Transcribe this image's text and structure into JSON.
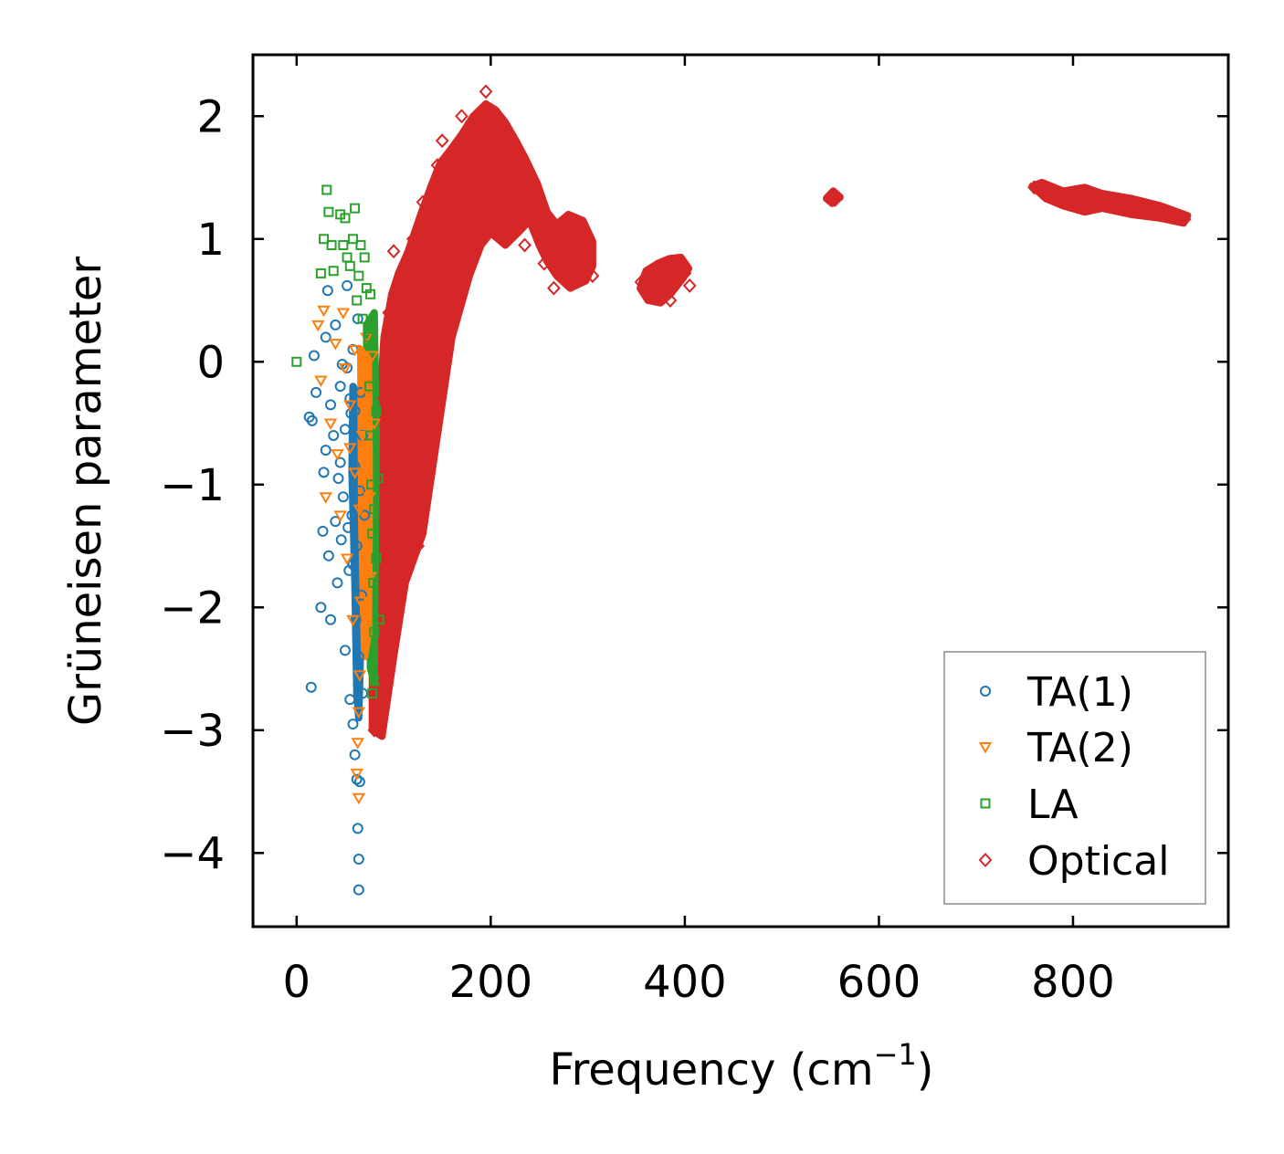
{
  "chart_data": {
    "type": "scatter",
    "title": "",
    "xlabel": "Frequency (cm",
    "xlabel_sup": "−1",
    "xlabel_close": ")",
    "ylabel": "Grüneisen parameter",
    "xlim": [
      -45,
      960
    ],
    "ylim": [
      -4.6,
      2.5
    ],
    "xticks": [
      0,
      200,
      400,
      600,
      800
    ],
    "xtick_labels": [
      "0",
      "200",
      "400",
      "600",
      "800"
    ],
    "yticks": [
      -4,
      -3,
      -2,
      -1,
      0,
      1,
      2
    ],
    "ytick_labels": [
      "−4",
      "−3",
      "−2",
      "−1",
      "0",
      "1",
      "2"
    ],
    "grid": false,
    "legend_position": "bottom-right",
    "series": [
      {
        "name": "TA(1)",
        "marker": "circle",
        "color": "#1f77b4",
        "points": [
          [
            15,
            -2.65
          ],
          [
            13,
            -0.45
          ],
          [
            16,
            -0.48
          ],
          [
            18,
            0.05
          ],
          [
            20,
            -0.25
          ],
          [
            25,
            -2.0
          ],
          [
            27,
            -1.38
          ],
          [
            28,
            -0.9
          ],
          [
            30,
            -0.72
          ],
          [
            30,
            0.2
          ],
          [
            32,
            0.58
          ],
          [
            33,
            -1.58
          ],
          [
            35,
            -2.1
          ],
          [
            35,
            -0.35
          ],
          [
            38,
            -0.6
          ],
          [
            40,
            -1.3
          ],
          [
            40,
            0.3
          ],
          [
            42,
            -1.8
          ],
          [
            43,
            -0.95
          ],
          [
            45,
            -0.2
          ],
          [
            46,
            -1.45
          ],
          [
            48,
            -1.1
          ],
          [
            50,
            -2.35
          ],
          [
            52,
            -0.05
          ],
          [
            52,
            0.62
          ],
          [
            54,
            -1.7
          ],
          [
            55,
            -2.75
          ],
          [
            56,
            -0.42
          ],
          [
            57,
            -1.25
          ],
          [
            58,
            -2.95
          ],
          [
            58,
            0.1
          ],
          [
            60,
            -3.2
          ],
          [
            60,
            -0.85
          ],
          [
            61,
            -2.1
          ],
          [
            62,
            -3.4
          ],
          [
            62,
            -1.5
          ],
          [
            63,
            -3.8
          ],
          [
            63,
            0.35
          ],
          [
            64,
            -4.05
          ],
          [
            64,
            -4.3
          ],
          [
            64,
            -2.4
          ],
          [
            65,
            -3.42
          ],
          [
            65,
            -1.05
          ],
          [
            66,
            -0.25
          ],
          [
            67,
            -1.9
          ],
          [
            68,
            -2.7
          ],
          [
            68,
            -0.6
          ],
          [
            70,
            -1.25
          ],
          [
            55,
            -0.3
          ],
          [
            50,
            -0.55
          ],
          [
            45,
            -0.82
          ],
          [
            47,
            -0.02
          ],
          [
            60,
            -0.4
          ],
          [
            58,
            -1.65
          ],
          [
            53,
            -1.35
          ]
        ]
      },
      {
        "name": "TA(2)",
        "marker": "triangle-down",
        "color": "#ff7f0e",
        "points": [
          [
            22,
            0.3
          ],
          [
            25,
            -0.15
          ],
          [
            28,
            0.42
          ],
          [
            30,
            -1.1
          ],
          [
            35,
            -0.5
          ],
          [
            40,
            0.15
          ],
          [
            42,
            -0.75
          ],
          [
            45,
            -1.25
          ],
          [
            48,
            0.4
          ],
          [
            50,
            -0.05
          ],
          [
            52,
            -1.6
          ],
          [
            55,
            -0.35
          ],
          [
            58,
            -2.1
          ],
          [
            60,
            -0.9
          ],
          [
            62,
            -3.35
          ],
          [
            64,
            -3.55
          ],
          [
            63,
            -3.1
          ],
          [
            64,
            -2.85
          ],
          [
            65,
            -2.55
          ],
          [
            66,
            -1.95
          ],
          [
            68,
            -0.6
          ],
          [
            70,
            -1.4
          ],
          [
            72,
            -2.25
          ],
          [
            72,
            0.2
          ],
          [
            74,
            -0.25
          ],
          [
            75,
            -1.1
          ],
          [
            76,
            -1.75
          ],
          [
            78,
            0.05
          ],
          [
            80,
            -0.5
          ],
          [
            65,
            -1.2
          ],
          [
            60,
            0.1
          ],
          [
            55,
            -0.7
          ]
        ]
      },
      {
        "name": "LA",
        "marker": "square",
        "color": "#2ca02c",
        "points": [
          [
            0,
            0.0
          ],
          [
            25,
            0.72
          ],
          [
            28,
            1.0
          ],
          [
            31,
            1.4
          ],
          [
            33,
            1.22
          ],
          [
            36,
            0.95
          ],
          [
            38,
            0.74
          ],
          [
            45,
            1.2
          ],
          [
            48,
            0.95
          ],
          [
            50,
            1.17
          ],
          [
            52,
            0.85
          ],
          [
            55,
            0.78
          ],
          [
            58,
            1.0
          ],
          [
            60,
            1.25
          ],
          [
            62,
            0.5
          ],
          [
            64,
            0.7
          ],
          [
            66,
            0.95
          ],
          [
            68,
            0.35
          ],
          [
            70,
            0.85
          ],
          [
            72,
            0.6
          ],
          [
            74,
            0.2
          ],
          [
            75,
            -0.2
          ],
          [
            76,
            -0.6
          ],
          [
            77,
            -1.0
          ],
          [
            78,
            -1.4
          ],
          [
            79,
            -1.8
          ],
          [
            80,
            -2.2
          ],
          [
            80,
            -2.6
          ],
          [
            78,
            -2.7
          ],
          [
            82,
            -1.6
          ],
          [
            84,
            -0.95
          ],
          [
            85,
            -2.1
          ],
          [
            82,
            -0.4
          ],
          [
            80,
            -1.2
          ],
          [
            76,
            0.55
          ]
        ]
      },
      {
        "name": "Optical",
        "marker": "diamond",
        "color": "#d62728",
        "points": [
          [
            80,
            -3.0
          ],
          [
            86,
            -2.9
          ],
          [
            90,
            -2.6
          ],
          [
            95,
            -2.2
          ],
          [
            100,
            -1.8
          ],
          [
            95,
            -1.4
          ],
          [
            100,
            -0.9
          ],
          [
            105,
            -1.2
          ],
          [
            90,
            -0.3
          ],
          [
            95,
            0.4
          ],
          [
            100,
            0.9
          ],
          [
            110,
            -0.1
          ],
          [
            110,
            0.7
          ],
          [
            120,
            -0.6
          ],
          [
            120,
            1.0
          ],
          [
            125,
            -1.5
          ],
          [
            130,
            -0.2
          ],
          [
            130,
            1.3
          ],
          [
            140,
            0.4
          ],
          [
            140,
            1.1
          ],
          [
            145,
            1.6
          ],
          [
            150,
            -0.1
          ],
          [
            150,
            1.8
          ],
          [
            160,
            0.6
          ],
          [
            160,
            1.5
          ],
          [
            170,
            2.0
          ],
          [
            175,
            0.8
          ],
          [
            180,
            1.95
          ],
          [
            190,
            1.2
          ],
          [
            195,
            2.2
          ],
          [
            200,
            1.1
          ],
          [
            205,
            1.9
          ],
          [
            210,
            1.5
          ],
          [
            215,
            1.05
          ],
          [
            220,
            1.85
          ],
          [
            230,
            1.65
          ],
          [
            235,
            0.95
          ],
          [
            240,
            1.4
          ],
          [
            250,
            1.2
          ],
          [
            255,
            0.8
          ],
          [
            265,
            0.6
          ],
          [
            275,
            0.68
          ],
          [
            280,
            1.05
          ],
          [
            290,
            0.85
          ],
          [
            300,
            0.95
          ],
          [
            305,
            0.7
          ],
          [
            355,
            0.65
          ],
          [
            365,
            0.55
          ],
          [
            375,
            0.6
          ],
          [
            380,
            0.7
          ],
          [
            385,
            0.5
          ],
          [
            390,
            0.78
          ],
          [
            400,
            0.72
          ],
          [
            405,
            0.62
          ],
          [
            550,
            1.35
          ],
          [
            555,
            1.32
          ],
          [
            760,
            1.42
          ],
          [
            780,
            1.36
          ],
          [
            800,
            1.3
          ],
          [
            820,
            1.34
          ],
          [
            840,
            1.28
          ],
          [
            860,
            1.25
          ],
          [
            880,
            1.22
          ],
          [
            900,
            1.2
          ],
          [
            915,
            1.16
          ]
        ]
      }
    ],
    "dense_regions": [
      {
        "series": "Optical",
        "outline": [
          [
            78,
            -3.0
          ],
          [
            88,
            -3.05
          ],
          [
            100,
            -2.4
          ],
          [
            112,
            -1.8
          ],
          [
            130,
            -1.4
          ],
          [
            145,
            -0.6
          ],
          [
            160,
            0.2
          ],
          [
            178,
            0.7
          ],
          [
            190,
            0.95
          ],
          [
            200,
            1.05
          ],
          [
            215,
            0.95
          ],
          [
            228,
            1.05
          ],
          [
            240,
            1.15
          ],
          [
            250,
            0.95
          ],
          [
            258,
            0.82
          ],
          [
            268,
            0.7
          ],
          [
            282,
            0.6
          ],
          [
            298,
            0.66
          ],
          [
            305,
            0.78
          ],
          [
            305,
            0.98
          ],
          [
            295,
            1.15
          ],
          [
            280,
            1.2
          ],
          [
            268,
            1.12
          ],
          [
            258,
            1.22
          ],
          [
            248,
            1.45
          ],
          [
            236,
            1.65
          ],
          [
            226,
            1.8
          ],
          [
            215,
            1.95
          ],
          [
            205,
            2.05
          ],
          [
            195,
            2.1
          ],
          [
            182,
            2.0
          ],
          [
            170,
            1.85
          ],
          [
            158,
            1.72
          ],
          [
            148,
            1.62
          ],
          [
            138,
            1.42
          ],
          [
            128,
            1.2
          ],
          [
            115,
            0.9
          ],
          [
            105,
            0.72
          ],
          [
            98,
            0.55
          ],
          [
            90,
            0.2
          ],
          [
            84,
            -0.6
          ],
          [
            80,
            -1.6
          ],
          [
            78,
            -2.4
          ]
        ]
      },
      {
        "series": "Optical",
        "outline": [
          [
            354,
            0.6
          ],
          [
            362,
            0.5
          ],
          [
            375,
            0.48
          ],
          [
            385,
            0.55
          ],
          [
            398,
            0.68
          ],
          [
            404,
            0.76
          ],
          [
            396,
            0.85
          ],
          [
            384,
            0.84
          ],
          [
            372,
            0.8
          ],
          [
            360,
            0.74
          ]
        ]
      },
      {
        "series": "Optical",
        "outline": [
          [
            546,
            1.33
          ],
          [
            552,
            1.29
          ],
          [
            560,
            1.34
          ],
          [
            553,
            1.39
          ]
        ]
      },
      {
        "series": "Optical",
        "outline": [
          [
            758,
            1.43
          ],
          [
            768,
            1.46
          ],
          [
            790,
            1.39
          ],
          [
            812,
            1.42
          ],
          [
            830,
            1.37
          ],
          [
            860,
            1.33
          ],
          [
            890,
            1.27
          ],
          [
            918,
            1.19
          ],
          [
            914,
            1.13
          ],
          [
            890,
            1.17
          ],
          [
            860,
            1.2
          ],
          [
            830,
            1.25
          ],
          [
            812,
            1.22
          ],
          [
            790,
            1.27
          ],
          [
            772,
            1.33
          ]
        ]
      },
      {
        "series": "TA(1)",
        "outline": [
          [
            58,
            -0.2
          ],
          [
            66,
            -0.3
          ],
          [
            68,
            -1.2
          ],
          [
            66,
            -2.3
          ],
          [
            64,
            -2.9
          ],
          [
            62,
            -2.7
          ],
          [
            60,
            -1.8
          ],
          [
            57,
            -0.9
          ]
        ]
      },
      {
        "series": "LA",
        "outline": [
          [
            72,
            0.3
          ],
          [
            80,
            0.4
          ],
          [
            82,
            -0.6
          ],
          [
            81,
            -1.6
          ],
          [
            80,
            -2.6
          ],
          [
            76,
            -2.5
          ],
          [
            75,
            -1.5
          ],
          [
            73,
            -0.4
          ]
        ]
      },
      {
        "series": "TA(2)",
        "outline": [
          [
            66,
            0.1
          ],
          [
            74,
            0.0
          ],
          [
            75,
            -1.0
          ],
          [
            74,
            -2.2
          ],
          [
            70,
            -2.4
          ],
          [
            67,
            -1.3
          ]
        ]
      }
    ]
  }
}
